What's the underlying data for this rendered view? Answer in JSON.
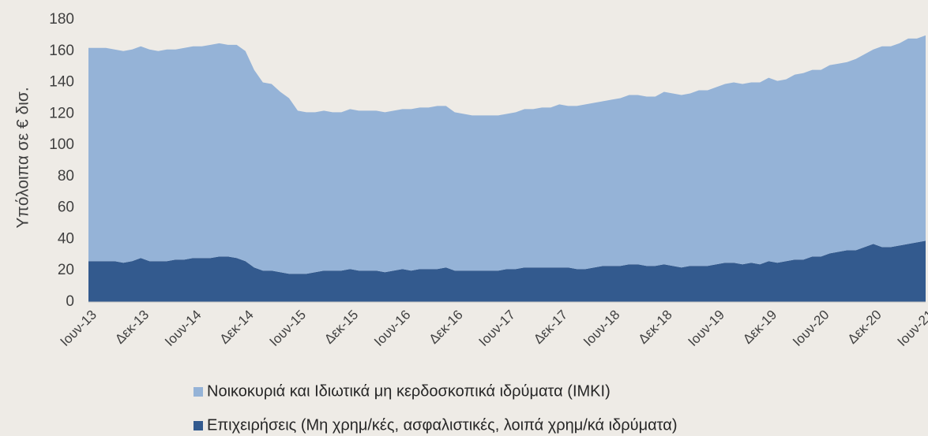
{
  "chart_data": {
    "type": "stacked_area",
    "y_label": "Υπόλοιπα σε € δισ.",
    "categories": [
      "Ιουν-13",
      null,
      null,
      null,
      null,
      null,
      "Δεκ-13",
      null,
      null,
      null,
      null,
      null,
      "Ιουν-14",
      null,
      null,
      null,
      null,
      null,
      "Δεκ-14",
      null,
      null,
      null,
      null,
      null,
      "Ιουν-15",
      null,
      null,
      null,
      null,
      null,
      "Δεκ-15",
      null,
      null,
      null,
      null,
      null,
      "Ιουν-16",
      null,
      null,
      null,
      null,
      null,
      "Δεκ-16",
      null,
      null,
      null,
      null,
      null,
      "Ιουν-17",
      null,
      null,
      null,
      null,
      null,
      "Δεκ-17",
      null,
      null,
      null,
      null,
      null,
      "Ιουν-18",
      null,
      null,
      null,
      null,
      null,
      "Δεκ-18",
      null,
      null,
      null,
      null,
      null,
      "Ιουν-19",
      null,
      null,
      null,
      null,
      null,
      "Δεκ-19",
      null,
      null,
      null,
      null,
      null,
      "Ιουν-20",
      null,
      null,
      null,
      null,
      null,
      "Δεκ-20",
      null,
      null,
      null,
      null,
      null,
      "Ιουν-21"
    ],
    "series": [
      {
        "name": "Νοικοκυριά και Ιδιωτικά μη κερδοσκοπικά ιδρύματα (ΙΜΚΙ)",
        "color": "#95b3d7",
        "values": [
          136,
          136,
          136,
          135,
          135,
          135,
          135,
          135,
          134,
          135,
          134,
          135,
          135,
          135,
          136,
          136,
          135,
          136,
          134,
          126,
          120,
          119,
          115,
          112,
          104,
          103,
          102,
          102,
          101,
          101,
          102,
          102,
          102,
          102,
          102,
          102,
          102,
          103,
          103,
          103,
          104,
          103,
          101,
          100,
          99,
          99,
          99,
          99,
          99,
          100,
          101,
          101,
          102,
          102,
          104,
          103,
          104,
          105,
          105,
          105,
          106,
          107,
          108,
          108,
          108,
          108,
          110,
          110,
          110,
          110,
          112,
          112,
          113,
          114,
          115,
          115,
          115,
          116,
          117,
          116,
          116,
          118,
          119,
          119,
          119,
          120,
          120,
          120,
          122,
          123,
          124,
          128,
          128,
          129,
          131,
          130,
          131
        ]
      },
      {
        "name": "Επιχειρήσεις (Μη χρημ/κές, ασφαλιστικές, λοιπά χρημ/κά ιδρύματα)",
        "color": "#335a8e",
        "values": [
          26,
          26,
          26,
          26,
          25,
          26,
          28,
          26,
          26,
          26,
          27,
          27,
          28,
          28,
          28,
          29,
          29,
          28,
          26,
          22,
          20,
          20,
          19,
          18,
          18,
          18,
          19,
          20,
          20,
          20,
          21,
          20,
          20,
          20,
          19,
          20,
          21,
          20,
          21,
          21,
          21,
          22,
          20,
          20,
          20,
          20,
          20,
          20,
          21,
          21,
          22,
          22,
          22,
          22,
          22,
          22,
          21,
          21,
          22,
          23,
          23,
          23,
          24,
          24,
          23,
          23,
          24,
          23,
          22,
          23,
          23,
          23,
          24,
          25,
          25,
          24,
          25,
          24,
          26,
          25,
          26,
          27,
          27,
          29,
          29,
          31,
          32,
          33,
          33,
          35,
          37,
          35,
          35,
          36,
          37,
          38,
          39
        ]
      }
    ],
    "ylim": [
      0,
      180
    ],
    "yticks": [
      0,
      20,
      40,
      60,
      80,
      100,
      120,
      140,
      160,
      180
    ]
  }
}
